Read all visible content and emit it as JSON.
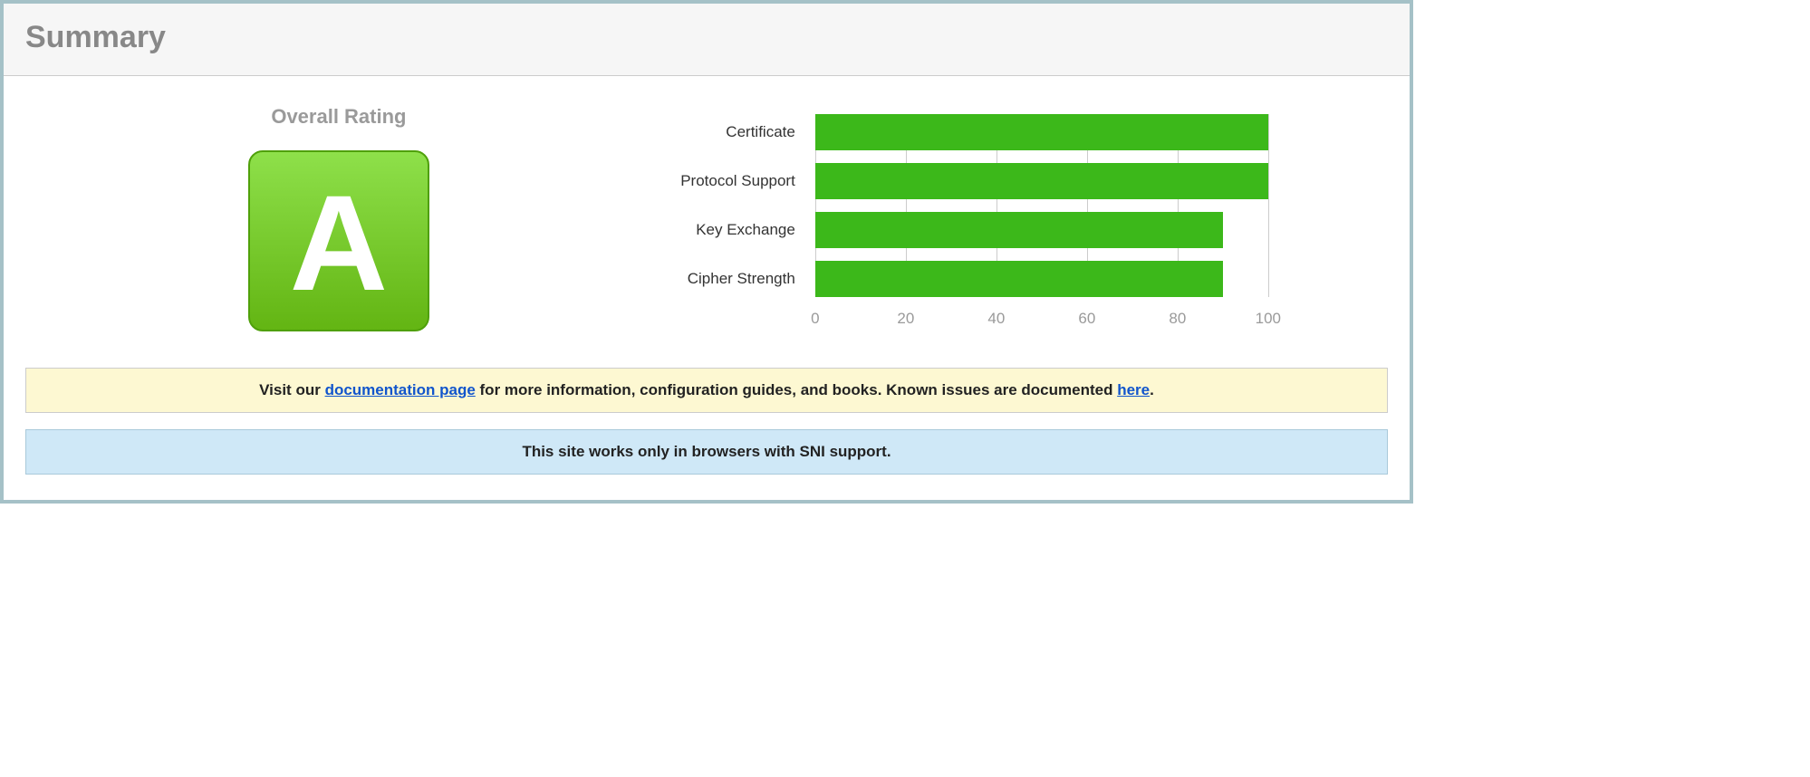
{
  "header": {
    "title": "Summary"
  },
  "rating": {
    "title": "Overall Rating",
    "grade": "A",
    "grade_bg": "#7ed321",
    "grade_bg_gradient_top": "#8ee04a",
    "grade_bg_gradient_bottom": "#63b513",
    "grade_border": "#4fa00a",
    "grade_text_color": "#ffffff"
  },
  "chart": {
    "type": "bar-horizontal",
    "xlim": [
      0,
      100
    ],
    "xticks": [
      0,
      20,
      40,
      60,
      80,
      100
    ],
    "gridline_color": "#cccccc",
    "axis_label_color": "#9a9a9a",
    "bar_label_color": "#333333",
    "bars": [
      {
        "label": "Certificate",
        "value": 100,
        "color": "#3cb81a"
      },
      {
        "label": "Protocol Support",
        "value": 100,
        "color": "#3cb81a"
      },
      {
        "label": "Key Exchange",
        "value": 90,
        "color": "#3cb81a"
      },
      {
        "label": "Cipher Strength",
        "value": 90,
        "color": "#3cb81a"
      }
    ]
  },
  "notices": {
    "docs": {
      "bg": "#fdf8d2",
      "border": "#cccccc",
      "prefix": "Visit our ",
      "link1_text": "documentation page",
      "middle": " for more information, configuration guides, and books. Known issues are documented ",
      "link2_text": "here",
      "suffix": "."
    },
    "sni": {
      "bg": "#cfe8f7",
      "border": "#a9c9da",
      "text": "This site works only in browsers with SNI support."
    }
  }
}
